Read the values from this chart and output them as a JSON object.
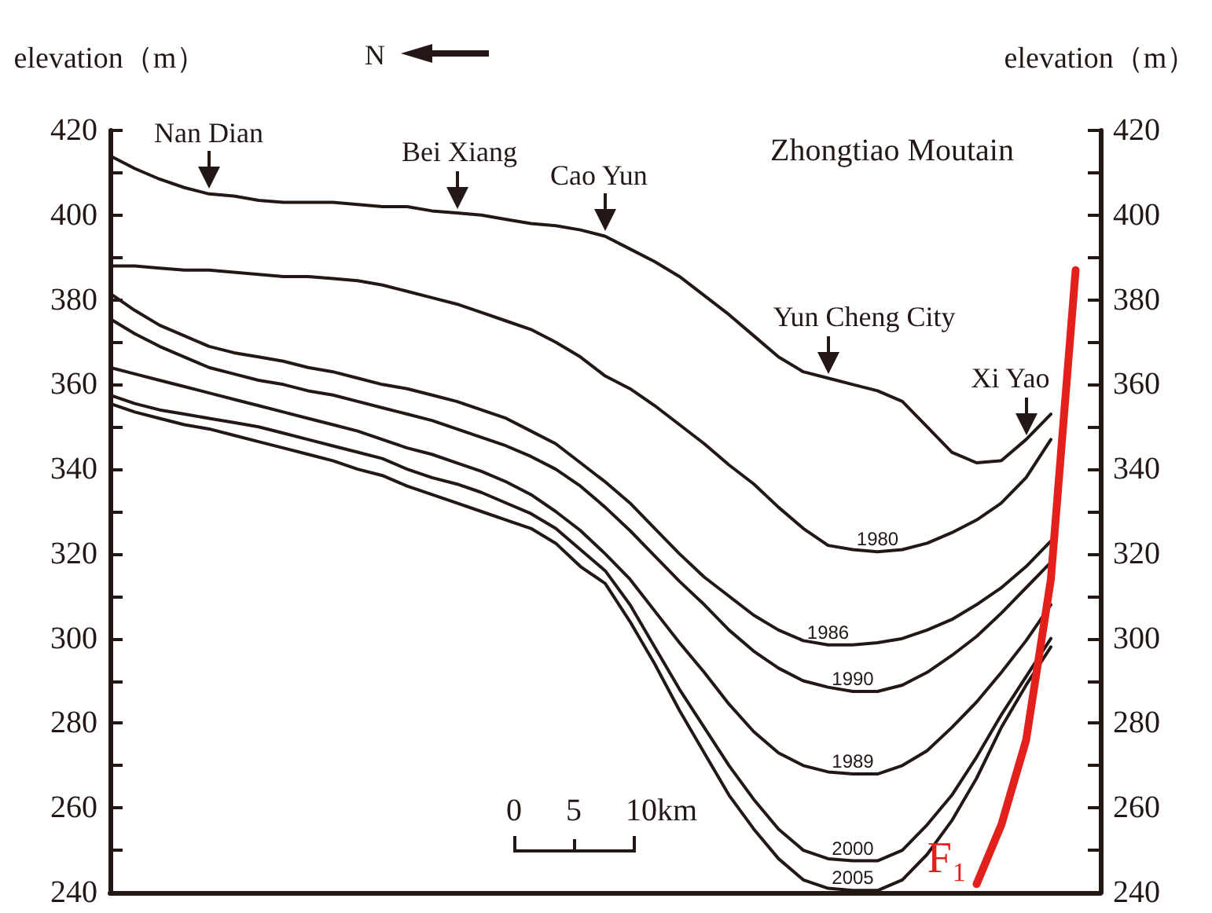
{
  "chart_data": {
    "type": "line",
    "ylabel": "elevation（m）",
    "y2label": "elevation（m）",
    "categories": [
      null,
      null,
      null,
      null,
      null,
      null,
      null,
      null,
      null,
      null,
      null,
      null,
      null,
      null,
      null,
      null,
      null,
      null,
      null,
      null,
      null,
      null,
      null,
      null,
      null,
      null,
      null,
      null,
      null,
      null,
      null,
      null,
      null,
      null,
      null,
      null,
      null,
      null,
      null,
      null,
      null
    ],
    "ylim": [
      240,
      420
    ],
    "y2lim": [
      240,
      420
    ],
    "yticks": [
      240,
      {
        "value": 250,
        "label": null
      },
      260,
      {
        "value": 270,
        "label": null
      },
      280,
      {
        "value": 290,
        "label": null
      },
      300,
      {
        "value": 310,
        "label": null
      },
      320,
      {
        "value": 330,
        "label": null
      },
      340,
      {
        "value": 350,
        "label": null
      },
      360,
      {
        "value": 370,
        "label": null
      },
      380,
      {
        "value": 390,
        "label": null
      },
      400,
      {
        "value": 410,
        "label": null
      },
      420
    ],
    "y2ticks": [
      240,
      {
        "value": 250,
        "label": null
      },
      260,
      {
        "value": 270,
        "label": null
      },
      280,
      {
        "value": 290,
        "label": null
      },
      300,
      {
        "value": 310,
        "label": null
      },
      320,
      {
        "value": 330,
        "label": null
      },
      340,
      {
        "value": 350,
        "label": null
      },
      360,
      {
        "value": 370,
        "label": null
      },
      380,
      {
        "value": 390,
        "label": null
      },
      400,
      {
        "value": 410,
        "label": null
      },
      420
    ],
    "tick_labels": "y",
    "grid": false,
    "legend": false,
    "series": [
      {
        "color": "#231815",
        "values": [
          414,
          411,
          408.5,
          406.5,
          405,
          404.5,
          403.5,
          403,
          403,
          403,
          402.5,
          402,
          402,
          401,
          400.5,
          400,
          399,
          398,
          397.5,
          396.5,
          395,
          392,
          389,
          385.5,
          381,
          376.5,
          371.5,
          366.5,
          363,
          361.5,
          360,
          358.5,
          356,
          350,
          344,
          341.5,
          342,
          347,
          353,
          null,
          null
        ],
        "value_labels": [
          null,
          null,
          null,
          null,
          "Nan Dian",
          null,
          null,
          null,
          null,
          null,
          null,
          null,
          null,
          null,
          "Bei Xiang",
          null,
          null,
          null,
          null,
          null,
          "Cao Yun",
          null,
          null,
          null,
          null,
          null,
          null,
          null,
          null,
          "Yun Cheng City",
          null,
          null,
          null,
          null,
          null,
          null,
          null,
          "Xi Yao",
          null,
          null,
          null
        ]
      },
      {
        "name": "1980",
        "color": "#231815",
        "values": [
          388,
          388,
          387.5,
          387,
          387,
          386.5,
          386,
          385.5,
          385.5,
          385,
          384.5,
          383.5,
          382,
          380.5,
          379,
          377,
          375,
          373,
          370,
          366.5,
          362,
          359,
          355,
          350.5,
          346,
          341,
          336.5,
          331,
          326,
          322,
          321,
          320.5,
          321,
          322.5,
          325,
          328,
          332,
          338,
          347,
          null,
          null
        ]
      },
      {
        "name": "1986",
        "color": "#231815",
        "values": [
          381.5,
          377.5,
          374,
          371.5,
          369,
          367.5,
          366.5,
          365.5,
          364,
          363,
          361.5,
          360,
          359,
          357.5,
          356,
          354,
          352,
          349,
          346,
          341.5,
          337,
          332,
          326,
          320,
          314.5,
          310,
          305.5,
          302,
          299.5,
          298.5,
          298.5,
          299,
          300,
          302,
          304.5,
          308,
          312,
          317,
          323,
          null,
          null
        ]
      },
      {
        "name": "1990",
        "color": "#231815",
        "values": [
          375.5,
          372,
          369,
          366.5,
          364,
          362.5,
          361,
          360,
          358.5,
          357.5,
          356,
          354.5,
          353,
          351.5,
          349.5,
          347.5,
          345.5,
          343,
          340,
          336,
          331,
          325.5,
          319.5,
          313.5,
          308,
          302,
          297,
          293,
          290,
          288.5,
          287.5,
          287.5,
          289,
          292,
          296,
          300.5,
          306,
          312,
          318,
          null,
          null
        ]
      },
      {
        "name": "1989",
        "color": "#231815",
        "values": [
          364,
          362.5,
          361,
          359.5,
          358,
          356.5,
          355,
          353.5,
          352,
          350.5,
          349,
          347,
          345,
          343.5,
          341.5,
          339.5,
          337,
          334,
          330,
          325.5,
          320,
          314,
          306.5,
          299,
          292,
          284.5,
          278,
          273,
          270,
          268.5,
          268,
          268,
          270,
          273.5,
          279,
          285,
          292,
          299.5,
          308,
          null,
          null
        ]
      },
      {
        "name": "2000",
        "color": "#231815",
        "values": [
          357.5,
          355.5,
          354,
          353,
          352,
          351,
          350,
          348.5,
          347,
          345.5,
          344,
          342.5,
          340,
          338,
          336.5,
          334.5,
          332,
          329.5,
          326,
          321,
          316,
          308,
          298,
          288,
          279,
          270,
          262,
          255,
          250,
          248,
          247.5,
          247.5,
          250,
          256,
          263,
          272,
          282,
          291,
          300,
          null,
          null
        ]
      },
      {
        "name": "2005",
        "color": "#231815",
        "values": [
          355.5,
          353.5,
          352,
          350.5,
          349.5,
          348,
          346.5,
          345,
          343.5,
          342,
          340,
          338.5,
          336,
          334,
          332,
          330,
          328,
          326,
          322.5,
          317,
          313,
          304,
          294,
          283,
          273,
          263,
          255,
          248,
          243,
          241,
          240.5,
          240.5,
          243,
          249,
          257,
          267,
          279,
          289,
          298,
          null,
          null
        ]
      },
      {
        "name": "F₁",
        "color": "#e3201b",
        "values": [
          null,
          null,
          null,
          null,
          null,
          null,
          null,
          null,
          null,
          null,
          null,
          null,
          null,
          null,
          null,
          null,
          null,
          null,
          null,
          null,
          null,
          null,
          null,
          null,
          null,
          null,
          null,
          null,
          null,
          null,
          null,
          null,
          null,
          null,
          null,
          242,
          256,
          276,
          314,
          387,
          null
        ]
      }
    ],
    "annotations": [
      "Zhongtiao Moutain",
      "N",
      "0",
      "5",
      "10km"
    ]
  }
}
